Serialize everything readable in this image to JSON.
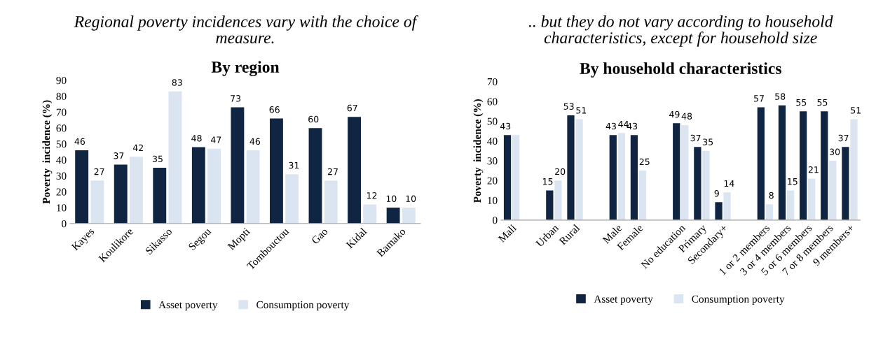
{
  "chart_data": [
    {
      "type": "bar",
      "subtitle": "Regional poverty incidences vary with the choice of measure.",
      "title": "By region",
      "ylabel": "Poverty  incidence (%)",
      "categories": [
        "Kayes",
        "Koulikore",
        "Sikasso",
        "Segou",
        "Mopti",
        "Tombouctou",
        "Gao",
        "Kidal",
        "Bamako"
      ],
      "series": [
        {
          "name": "Asset poverty",
          "color": "#0f2542",
          "values": [
            46,
            37,
            35,
            48,
            73,
            66,
            60,
            67,
            10
          ]
        },
        {
          "name": "Consumption poverty",
          "color": "#dbe5f1",
          "values": [
            27,
            42,
            83,
            47,
            46,
            31,
            27,
            12,
            10
          ]
        }
      ],
      "ylim": [
        0,
        90
      ],
      "yticks": [
        0,
        10,
        20,
        30,
        40,
        50,
        60,
        70,
        80,
        90
      ],
      "data_labels": true,
      "legend": "bottom",
      "grid": false
    },
    {
      "type": "bar",
      "subtitle": ".. but they do not vary according to household characteristics, except for household size",
      "title": "By household characteristics",
      "ylabel": "Poverty  incidence (%)",
      "categories": [
        "Mali",
        null,
        "Urban",
        "Rural",
        null,
        "Male",
        "Female",
        null,
        "No education",
        "Primary",
        "Secondary+",
        null,
        "1 or 2 members",
        "3 or 4 members",
        "5 or 6 members",
        "7 or 8 members",
        "9 members+"
      ],
      "series": [
        {
          "name": "Asset poverty",
          "color": "#0f2542",
          "values": [
            43,
            null,
            15,
            53,
            null,
            43,
            43,
            null,
            49,
            37,
            9,
            null,
            57,
            58,
            55,
            55,
            37
          ],
          "value_labels": [
            "43",
            null,
            "15",
            "53",
            null,
            "43",
            "43",
            null,
            "49",
            "37",
            "9",
            null,
            "57",
            "58",
            "55",
            "55",
            "37"
          ]
        },
        {
          "name": "Consumption poverty",
          "color": "#dbe5f1",
          "values": [
            43,
            null,
            20,
            51,
            null,
            44,
            25,
            null,
            48,
            35,
            14,
            null,
            8,
            15,
            21,
            30,
            51
          ],
          "value_labels": [
            null,
            null,
            "20",
            "51",
            null,
            "44",
            "25",
            null,
            "48",
            "35",
            "14",
            null,
            "8",
            "15",
            "21",
            "30",
            "51"
          ]
        }
      ],
      "ylim": [
        0,
        70
      ],
      "yticks": [
        0,
        10,
        20,
        30,
        40,
        50,
        60,
        70
      ],
      "legend": "bottom",
      "grid": false
    }
  ]
}
